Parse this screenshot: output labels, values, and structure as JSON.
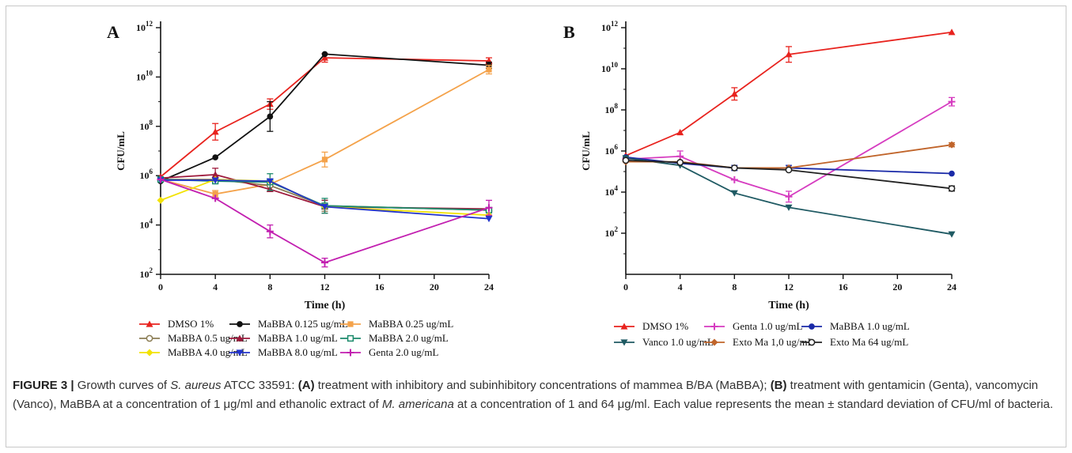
{
  "chart_data": [
    {
      "type": "line",
      "panel_label": "A",
      "xlabel": "Time (h)",
      "ylabel": "CFU/mL",
      "x_ticks": [
        0,
        4,
        8,
        12,
        16,
        20,
        24
      ],
      "x_tick_labels": [
        "0",
        "4",
        "8",
        "12",
        "16",
        "20",
        "24"
      ],
      "xlim": [
        0,
        24
      ],
      "y_scale": "log10",
      "ylim": [
        100,
        1000000000000
      ],
      "y_tick_labels": [
        {
          "base": "10",
          "exp": "12"
        },
        {
          "base": "10",
          "exp": "10"
        },
        {
          "base": "10",
          "exp": "8"
        },
        {
          "base": "10",
          "exp": "6"
        },
        {
          "base": "10",
          "exp": "4"
        },
        {
          "base": "10",
          "exp": "2"
        }
      ],
      "legend_placement": "bottom",
      "x": [
        0,
        4,
        8,
        12,
        24
      ],
      "series": [
        {
          "name": "DMSO 1%",
          "color": "#e8231e",
          "marker": "triangle",
          "values": [
            900000,
            60000000,
            800000000,
            60000000000,
            45000000000
          ],
          "errors_upper": [
            null,
            130000000,
            1300000000,
            90000000000,
            60000000000
          ]
        },
        {
          "name": "MaBBA 0.125 ug/mL",
          "color": "#111111",
          "marker": "circle",
          "values": [
            600000,
            5500000,
            250000000,
            85000000000,
            30000000000
          ],
          "errors_upper": [
            null,
            null,
            1000000000,
            null,
            40000000000
          ]
        },
        {
          "name": "MaBBA 0.25 ug/mL",
          "color": "#f4a24a",
          "marker": "square",
          "values": [
            700000,
            180000,
            450000,
            4500000,
            20000000000
          ],
          "errors_upper": [
            null,
            250000,
            null,
            9000000,
            30000000000
          ]
        },
        {
          "name": "MaBBA 0.5 ug/mL",
          "color": "#8b7d55",
          "marker": "circle-open",
          "values": [
            700000,
            700000,
            400000,
            60000,
            40000
          ],
          "errors_upper": [
            null,
            null,
            null,
            100000,
            null
          ]
        },
        {
          "name": "MaBBA 1.0 ug/mL",
          "color": "#9e1a3c",
          "marker": "triangle",
          "values": [
            800000,
            1100000,
            280000,
            55000,
            45000
          ],
          "errors_upper": [
            null,
            2000000,
            null,
            100000,
            null
          ]
        },
        {
          "name": "MaBBA 2.0 ug/mL",
          "color": "#1b8a6b",
          "marker": "square-open",
          "values": [
            700000,
            600000,
            550000,
            60000,
            40000
          ],
          "errors_upper": [
            null,
            null,
            1200000,
            120000,
            null
          ]
        },
        {
          "name": "MaBBA 4.0 ug/mL",
          "color": "#f2e205",
          "marker": "diamond",
          "values": [
            100000,
            700000,
            600000,
            55000,
            25000
          ],
          "errors_upper": [
            null,
            null,
            null,
            null,
            null
          ]
        },
        {
          "name": "MaBBA 8.0 ug/mL",
          "color": "#2233cc",
          "marker": "triangle-down",
          "values": [
            650000,
            650000,
            600000,
            55000,
            18000
          ],
          "errors_upper": [
            null,
            null,
            null,
            null,
            null
          ]
        },
        {
          "name": "Genta 2.0 ug/mL",
          "color": "#c21fb0",
          "marker": "cross",
          "values": [
            700000,
            120000,
            5500,
            300,
            50000
          ],
          "errors_upper": [
            null,
            null,
            10000,
            450,
            100000
          ]
        }
      ]
    },
    {
      "type": "line",
      "panel_label": "B",
      "xlabel": "Time (h)",
      "ylabel": "CFU/mL",
      "x_ticks": [
        0,
        4,
        8,
        12,
        16,
        20,
        24
      ],
      "x_tick_labels": [
        "0",
        "4",
        "8",
        "12",
        "16",
        "20",
        "24"
      ],
      "xlim": [
        0,
        24
      ],
      "y_scale": "log10",
      "ylim": [
        1,
        1000000000000
      ],
      "y_tick_labels": [
        {
          "base": "10",
          "exp": "12"
        },
        {
          "base": "10",
          "exp": "10"
        },
        {
          "base": "10",
          "exp": "8"
        },
        {
          "base": "10",
          "exp": "6"
        },
        {
          "base": "10",
          "exp": "4"
        },
        {
          "base": "10",
          "exp": "2"
        }
      ],
      "legend_placement": "bottom",
      "x": [
        0,
        4,
        8,
        12,
        24
      ],
      "series": [
        {
          "name": "DMSO 1%",
          "color": "#e8231e",
          "marker": "triangle",
          "values": [
            600000,
            8000000,
            600000000,
            50000000000,
            600000000000
          ],
          "errors_upper": [
            null,
            null,
            1200000000,
            120000000000,
            null
          ]
        },
        {
          "name": "Genta 1.0 ug/mL",
          "color": "#d63cc0",
          "marker": "cross",
          "values": [
            400000,
            550000,
            40000,
            6000,
            250000000
          ],
          "errors_upper": [
            null,
            1000000,
            null,
            11000,
            400000000
          ]
        },
        {
          "name": "MaBBA 1.0 ug/mL",
          "color": "#1a2aa8",
          "marker": "circle",
          "values": [
            500000,
            250000,
            150000,
            150000,
            80000
          ],
          "errors_upper": [
            null,
            null,
            200000,
            200000,
            null
          ]
        },
        {
          "name": "Vanco 1.0 ug/mL",
          "color": "#1f5a63",
          "marker": "triangle-down",
          "values": [
            450000,
            200000,
            9000,
            1800,
            90
          ],
          "errors_upper": [
            null,
            null,
            null,
            null,
            null
          ]
        },
        {
          "name": "Exto Ma 1,0 ug/mL",
          "color": "#c0642a",
          "marker": "diamond",
          "values": [
            300000,
            300000,
            150000,
            150000,
            2000000
          ],
          "errors_upper": [
            null,
            null,
            null,
            null,
            2500000
          ]
        },
        {
          "name": "Exto Ma 64 ug/mL",
          "color": "#222222",
          "marker": "circle-open",
          "values": [
            350000,
            280000,
            150000,
            120000,
            15000
          ],
          "errors_upper": [
            null,
            null,
            null,
            null,
            20000
          ]
        }
      ]
    }
  ],
  "caption": {
    "label": "FIGURE 3 |",
    "t1": " Growth curves of ",
    "species": "S. aureus",
    "t2": " ATCC 33591: ",
    "a": "(A)",
    "t3": " treatment with inhibitory and subinhibitory concentrations of mammea B/BA (MaBBA); ",
    "b": "(B)",
    "t4": " treatment with gentamicin (Genta), vancomycin (Vanco), MaBBA at a concentration of 1 μg/ml and ethanolic extract of ",
    "species2": "M. americana",
    "t5": " at a concentration of 1 and 64 μg/ml. Each value represents the mean ± standard deviation of CFU/ml of bacteria."
  }
}
